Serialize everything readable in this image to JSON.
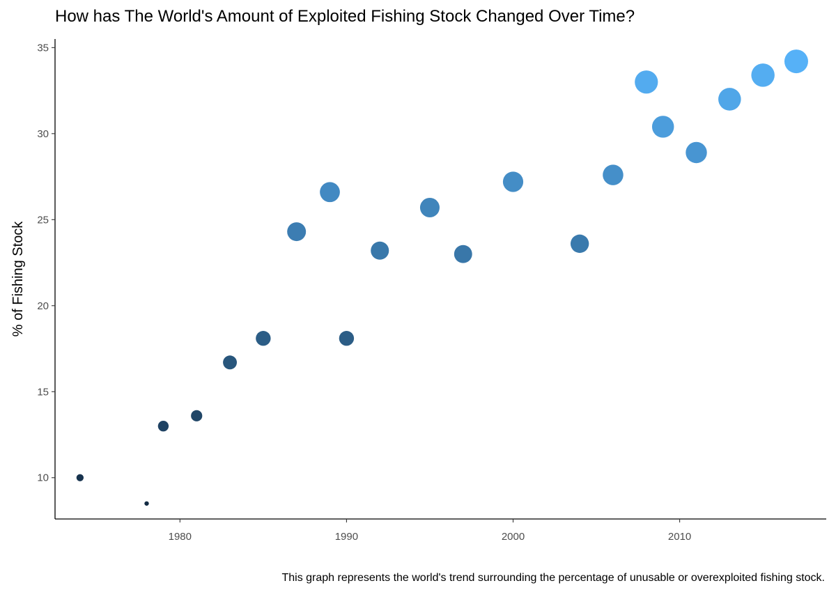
{
  "chart_data": {
    "type": "scatter",
    "title": "How has The World's Amount of Exploited Fishing Stock Changed Over Time?",
    "caption": "This graph represents the world's trend surrounding the percentage of unusable or overexploited fishing stock.",
    "xlabel": "",
    "ylabel": "% of Fishing Stock",
    "xlim": [
      1972.5,
      2018.8
    ],
    "ylim": [
      7.6,
      35.5
    ],
    "x_ticks": [
      1980,
      1990,
      2000,
      2010
    ],
    "y_ticks": [
      10,
      15,
      20,
      25,
      30,
      35
    ],
    "grid": false,
    "legend": "none",
    "size_and_color_encode": "y",
    "color_low": "#132B43",
    "color_high": "#56B1F7",
    "x": [
      1974,
      1978,
      1979,
      1981,
      1983,
      1985,
      1987,
      1989,
      1990,
      1992,
      1995,
      1997,
      2000,
      2004,
      2006,
      2008,
      2009,
      2011,
      2013,
      2015,
      2017
    ],
    "y": [
      10.0,
      8.5,
      13.0,
      13.6,
      16.7,
      18.1,
      24.3,
      26.6,
      18.1,
      23.2,
      25.7,
      23.0,
      27.2,
      23.6,
      27.6,
      33.0,
      30.4,
      28.9,
      32.0,
      33.4,
      34.2
    ]
  }
}
